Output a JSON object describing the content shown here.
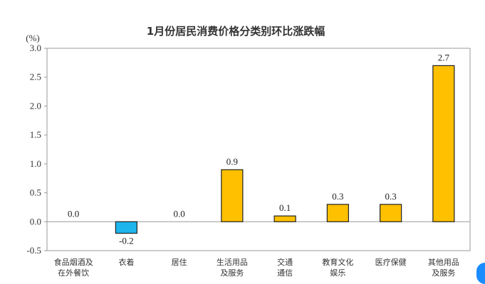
{
  "chart_data": {
    "type": "bar",
    "title": "1月份居民消费价格分类别环比涨跌幅",
    "ylabel": "(%)",
    "xlabel": "",
    "ylim": [
      -0.5,
      3.0
    ],
    "yticks": [
      "3.0",
      "2.5",
      "2.0",
      "1.5",
      "1.0",
      "0.5",
      "0.0",
      "-0.5"
    ],
    "grid": false,
    "categories": [
      [
        "食品烟酒及",
        "在外餐饮"
      ],
      [
        "衣着"
      ],
      [
        "居住"
      ],
      [
        "生活用品",
        "及服务"
      ],
      [
        "交通",
        "通信"
      ],
      [
        "教育文化",
        "娱乐"
      ],
      [
        "医疗保健"
      ],
      [
        "其他用品",
        "及服务"
      ]
    ],
    "values": [
      0.0,
      -0.2,
      0.0,
      0.9,
      0.1,
      0.3,
      0.3,
      2.7
    ],
    "data_labels": [
      "0.0",
      "-0.2",
      "0.0",
      "0.9",
      "0.1",
      "0.3",
      "0.3",
      "2.7"
    ],
    "colors": {
      "positive": "#FFC000",
      "negative": "#1EB4EC",
      "border": "#222222",
      "axis": "#999999"
    }
  }
}
